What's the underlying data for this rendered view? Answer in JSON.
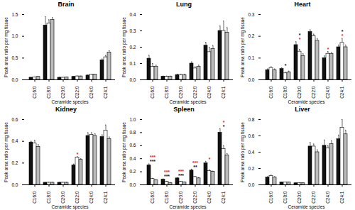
{
  "chart_data": [
    {
      "type": "bar",
      "title": "Brain",
      "x_label": "Ceramide species",
      "y_label": "Peak area ratio per mg tissue",
      "categories": [
        "C16:0",
        "C18:0",
        "C20:0",
        "C22:0",
        "C24:0",
        "C24:1"
      ],
      "series": [
        {
          "color": "#111111",
          "values": [
            0.05,
            1.25,
            0.05,
            0.07,
            0.1,
            0.45
          ],
          "errors": [
            0.005,
            0.2,
            0.005,
            0.005,
            0.01,
            0.03
          ]
        },
        {
          "color": "#ffffff",
          "values": [
            0.06,
            1.3,
            0.05,
            0.08,
            0.12,
            0.52
          ],
          "errors": [
            0.005,
            0.08,
            0.005,
            0.01,
            0.01,
            0.04
          ]
        },
        {
          "color": "#bbbbbb",
          "values": [
            0.07,
            1.38,
            0.06,
            0.08,
            0.12,
            0.63
          ],
          "errors": [
            0.005,
            0.05,
            0.005,
            0.005,
            0.01,
            0.04
          ]
        }
      ],
      "ylim": [
        0,
        1.5
      ],
      "yticks": [
        {
          "value": 0,
          "label": "0.0"
        },
        {
          "value": 0.5,
          "label": "0.5"
        },
        {
          "value": 1,
          "label": "1.0"
        },
        {
          "value": 1.5,
          "label": "1.5"
        }
      ],
      "annotations": []
    },
    {
      "type": "bar",
      "title": "Lung",
      "x_label": "Ceramide species",
      "y_label": "Peak area ratio per mg tissue",
      "categories": [
        "C16:0",
        "C18:0",
        "C20:0",
        "C22:0",
        "C24:0",
        "C24:1"
      ],
      "series": [
        {
          "color": "#111111",
          "values": [
            0.13,
            0.02,
            0.03,
            0.1,
            0.21,
            0.3
          ],
          "errors": [
            0.02,
            0.003,
            0.005,
            0.01,
            0.02,
            0.03
          ]
        },
        {
          "color": "#ffffff",
          "values": [
            0.08,
            0.02,
            0.03,
            0.07,
            0.17,
            0.3
          ],
          "errors": [
            0.02,
            0.003,
            0.005,
            0.01,
            0.03,
            0.06
          ]
        },
        {
          "color": "#bbbbbb",
          "values": [
            0.08,
            0.02,
            0.03,
            0.08,
            0.19,
            0.29
          ],
          "errors": [
            0.01,
            0.003,
            0.005,
            0.01,
            0.02,
            0.03
          ]
        }
      ],
      "ylim": [
        0,
        0.4
      ],
      "yticks": [
        {
          "value": 0,
          "label": "0.0"
        },
        0.1,
        0.2,
        0.3,
        0.4
      ],
      "annotations": []
    },
    {
      "type": "bar",
      "title": "Heart",
      "x_label": "Ceramide species",
      "y_label": "Peak area ratio per mg tissue",
      "categories": [
        "C16:0",
        "C18:0",
        "C20:0",
        "C22:0",
        "C24:0",
        "C24:1"
      ],
      "series": [
        {
          "color": "#111111",
          "values": [
            0.045,
            0.05,
            0.16,
            0.22,
            0.1,
            0.15
          ],
          "errors": [
            0.005,
            0.005,
            0.015,
            0.01,
            0.01,
            0.01
          ]
        },
        {
          "color": "#ffffff",
          "values": [
            0.055,
            0.03,
            0.13,
            0.2,
            0.12,
            0.17
          ],
          "errors": [
            0.005,
            0.005,
            0.01,
            0.01,
            0.01,
            0.02
          ]
        },
        {
          "color": "#bbbbbb",
          "values": [
            0.045,
            0.035,
            0.11,
            0.18,
            0.12,
            0.15
          ],
          "errors": [
            0.005,
            0.005,
            0.01,
            0.01,
            0.005,
            0.01
          ]
        }
      ],
      "ylim": [
        0,
        0.3
      ],
      "yticks": [
        {
          "value": 0,
          "label": "0.0"
        },
        0.1,
        0.2,
        0.3
      ],
      "annotations": [
        {
          "category": "C18:0",
          "text": "*",
          "color": "#111111"
        },
        {
          "category": "C20:0",
          "text": "*",
          "color": "#e8202a"
        },
        {
          "category": "C20:0",
          "text": "*",
          "color": "#111111"
        },
        {
          "category": "C24:0",
          "text": "*",
          "color": "#e8202a"
        },
        {
          "category": "C24:1",
          "text": "*",
          "color": "#e8202a"
        },
        {
          "category": "C24:1",
          "text": "*",
          "color": "#111111"
        }
      ]
    },
    {
      "type": "bar",
      "title": "Kidney",
      "x_label": "Ceramide species",
      "y_label": "Peak area ratio per mg tissue",
      "categories": [
        "C16:0",
        "C18:0",
        "C20:0",
        "C22:0",
        "C24:0",
        "C24:1"
      ],
      "series": [
        {
          "color": "#111111",
          "values": [
            0.39,
            0.02,
            0.02,
            0.18,
            0.45,
            0.44
          ],
          "errors": [
            0.01,
            0.002,
            0.002,
            0.01,
            0.03,
            0.02
          ]
        },
        {
          "color": "#ffffff",
          "values": [
            0.38,
            0.02,
            0.02,
            0.25,
            0.46,
            0.5
          ],
          "errors": [
            0.03,
            0.002,
            0.002,
            0.01,
            0.02,
            0.05
          ]
        },
        {
          "color": "#bbbbbb",
          "values": [
            0.35,
            0.02,
            0.02,
            0.23,
            0.45,
            0.42
          ],
          "errors": [
            0.02,
            0.002,
            0.002,
            0.01,
            0.02,
            0.02
          ]
        }
      ],
      "ylim": [
        0,
        0.6
      ],
      "yticks": [
        {
          "value": 0,
          "label": "0.0"
        },
        0.2,
        0.4,
        0.6
      ],
      "annotations": [
        {
          "category": "C22:0",
          "text": "*",
          "color": "#e8202a"
        }
      ]
    },
    {
      "type": "bar",
      "title": "Spleen",
      "x_label": "Ceramide species",
      "y_label": "Peak area ratio per mg tissue",
      "categories": [
        "C16:0",
        "C18:0",
        "C20:0",
        "C22:0",
        "C24:0",
        "C24:1"
      ],
      "series": [
        {
          "color": "#111111",
          "values": [
            0.3,
            0.08,
            0.1,
            0.22,
            0.33,
            0.8
          ],
          "errors": [
            0.02,
            0.01,
            0.01,
            0.02,
            0.03,
            0.06
          ]
        },
        {
          "color": "#ffffff",
          "values": [
            0.09,
            0.05,
            0.05,
            0.12,
            0.21,
            0.55
          ],
          "errors": [
            0.01,
            0.005,
            0.005,
            0.01,
            0.02,
            0.05
          ]
        },
        {
          "color": "#bbbbbb",
          "values": [
            0.07,
            0.03,
            0.04,
            0.1,
            0.2,
            0.45
          ],
          "errors": [
            0.01,
            0.005,
            0.005,
            0.01,
            0.01,
            0.03
          ]
        }
      ],
      "ylim": [
        0,
        1
      ],
      "yticks": [
        {
          "value": 0,
          "label": "0.0"
        },
        0.2,
        0.4,
        0.6,
        0.8,
        {
          "value": 1,
          "label": "1.0"
        }
      ],
      "annotations": [
        {
          "category": "C16:0",
          "text": "***",
          "color": "#111111"
        },
        {
          "category": "C16:0",
          "text": "***",
          "color": "#e8202a"
        },
        {
          "category": "C18:0",
          "text": "***",
          "color": "#111111"
        },
        {
          "category": "C18:0",
          "text": "***",
          "color": "#e8202a"
        },
        {
          "category": "C20:0",
          "text": "***",
          "color": "#111111"
        },
        {
          "category": "C20:0",
          "text": "***",
          "color": "#e8202a"
        },
        {
          "category": "C22:0",
          "text": "**",
          "color": "#111111"
        },
        {
          "category": "C22:0",
          "text": "***",
          "color": "#e8202a"
        },
        {
          "category": "C24:0",
          "text": "*",
          "color": "#e8202a"
        },
        {
          "category": "C24:1",
          "text": "*",
          "color": "#111111"
        },
        {
          "category": "C24:1",
          "text": "*",
          "color": "#e8202a"
        }
      ]
    },
    {
      "type": "bar",
      "title": "Liver",
      "x_label": "Ceramide species",
      "y_label": "Peak area ratio per mg tissue",
      "categories": [
        "C16:0",
        "C18:0",
        "C20:0",
        "C22:0",
        "C24:0",
        "C24:1"
      ],
      "series": [
        {
          "color": "#111111",
          "values": [
            0.09,
            0.03,
            0.02,
            0.47,
            0.48,
            0.56
          ],
          "errors": [
            0.01,
            0.003,
            0.003,
            0.05,
            0.07,
            0.05
          ]
        },
        {
          "color": "#ffffff",
          "values": [
            0.11,
            0.03,
            0.02,
            0.47,
            0.45,
            0.7
          ],
          "errors": [
            0.01,
            0.003,
            0.003,
            0.03,
            0.03,
            0.1
          ]
        },
        {
          "color": "#bbbbbb",
          "values": [
            0.09,
            0.03,
            0.02,
            0.4,
            0.5,
            0.62
          ],
          "errors": [
            0.01,
            0.003,
            0.003,
            0.03,
            0.04,
            0.05
          ]
        }
      ],
      "ylim": [
        0,
        0.8
      ],
      "yticks": [
        {
          "value": 0,
          "label": "0.0"
        },
        0.2,
        0.4,
        0.6,
        0.8
      ],
      "annotations": []
    }
  ]
}
